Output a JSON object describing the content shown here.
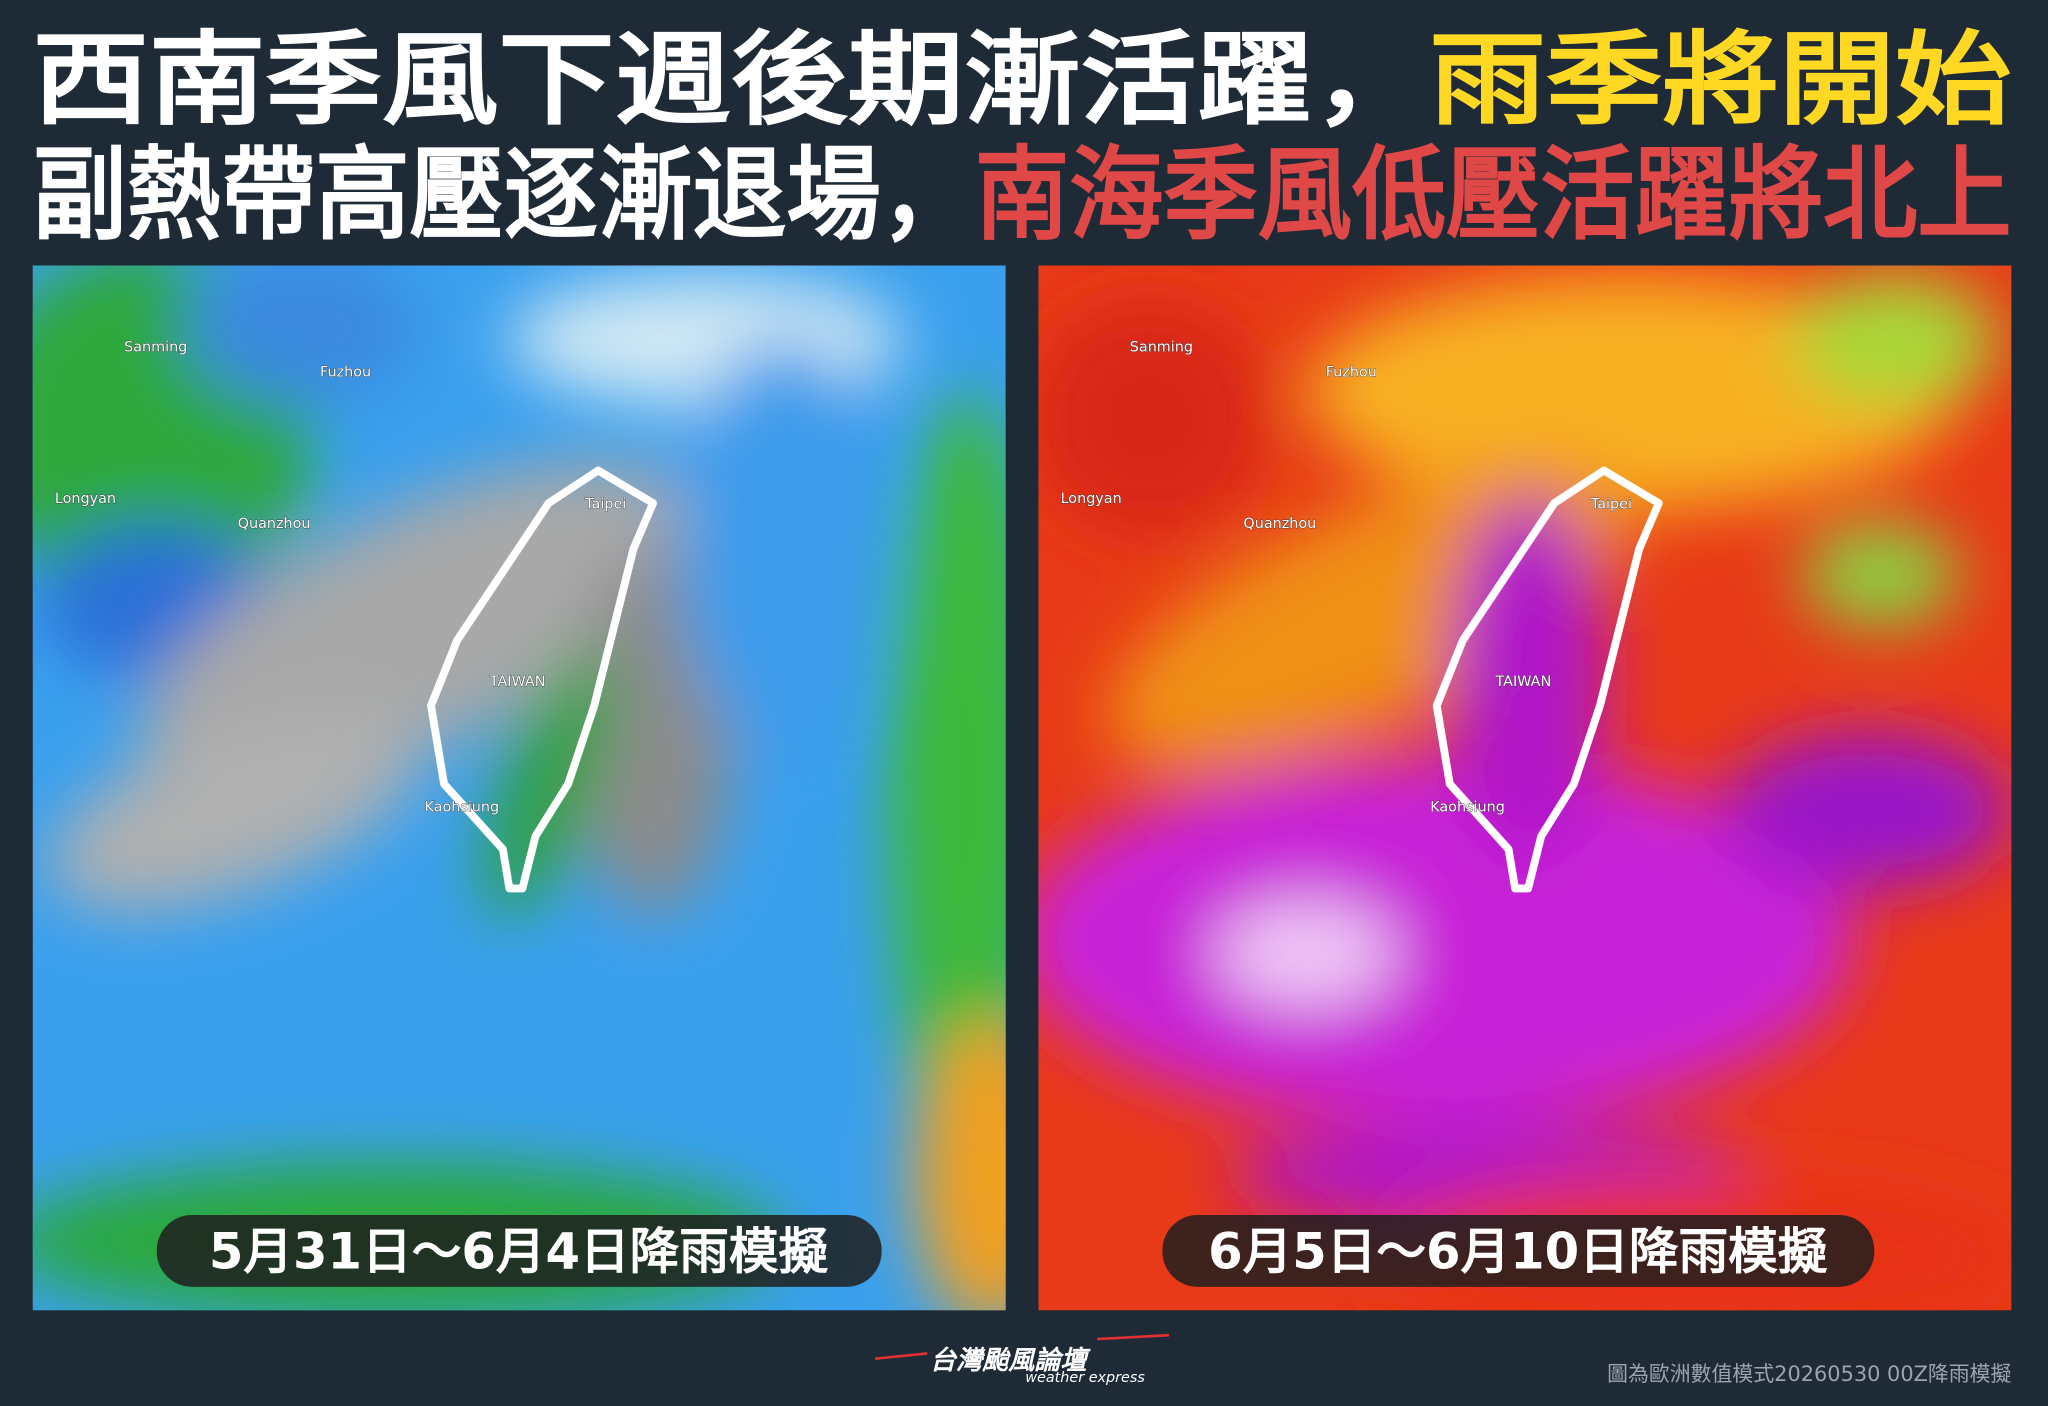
{
  "header": {
    "line1": {
      "white": "西南季風下週後期漸活躍，",
      "highlight": "雨季將開始"
    },
    "line2": {
      "white": "副熱帶高壓逐漸退場，",
      "highlight": "南海季風低壓活躍將北上"
    }
  },
  "maps": [
    {
      "caption": "5月31日～6月4日降雨模擬",
      "labels": [
        "Sanming",
        "Fuzhou",
        "Longyan",
        "Quanzhou",
        "Taipei",
        "TAIWAN",
        "Kaohsiung"
      ]
    },
    {
      "caption": "6月5日～6月10日降雨模擬",
      "labels": [
        "Sanming",
        "Fuzhou",
        "Longyan",
        "Quanzhou",
        "Taipei",
        "TAIWAN",
        "Kaohsiung"
      ]
    }
  ],
  "footer": {
    "logo": "台灣颱風論壇",
    "tagline": "weather express",
    "credit": "圖為歐洲數值模式20260530 00Z降雨模擬"
  }
}
